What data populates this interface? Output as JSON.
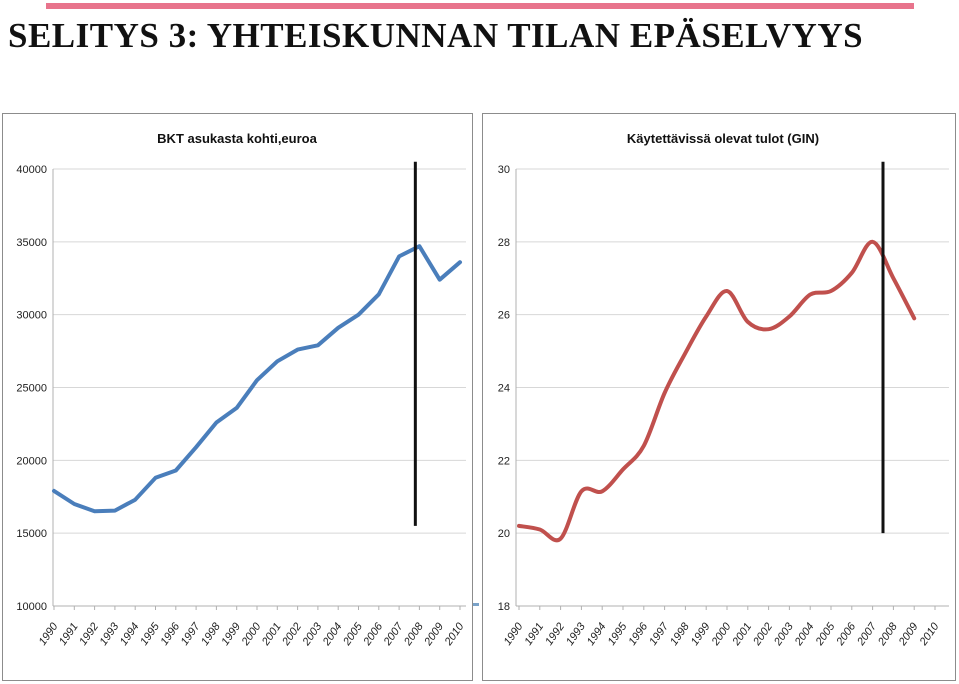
{
  "slide": {
    "title": "SELITYS 3: YHTEISKUNNAN TILAN EPÄSELVYYS",
    "accent_color": "#e8748c"
  },
  "chart_data": [
    {
      "type": "line",
      "title": "BKT asukasta kohti,euroa",
      "color": "#4a7ebb",
      "xlabel": "",
      "ylabel": "",
      "x_categories": [
        "1990",
        "1991",
        "1992",
        "1993",
        "1994",
        "1995",
        "1996",
        "1997",
        "1998",
        "1999",
        "2000",
        "2001",
        "2002",
        "2003",
        "2004",
        "2005",
        "2006",
        "2007",
        "2008",
        "2009",
        "2010"
      ],
      "ylim": [
        10000,
        40000
      ],
      "yticks": [
        10000,
        15000,
        20000,
        25000,
        30000,
        35000,
        40000
      ],
      "grid": true,
      "points": [
        {
          "x": 0.0,
          "y": 17900
        },
        {
          "x": 1.0,
          "y": 17000
        },
        {
          "x": 2.0,
          "y": 16500
        },
        {
          "x": 3.0,
          "y": 16550
        },
        {
          "x": 4.0,
          "y": 17300
        },
        {
          "x": 5.0,
          "y": 18800
        },
        {
          "x": 6.0,
          "y": 19300
        },
        {
          "x": 7.0,
          "y": 20900
        },
        {
          "x": 8.0,
          "y": 22600
        },
        {
          "x": 9.0,
          "y": 23600
        },
        {
          "x": 10.0,
          "y": 25500
        },
        {
          "x": 11.0,
          "y": 26800
        },
        {
          "x": 12.0,
          "y": 27600
        },
        {
          "x": 13.0,
          "y": 27900
        },
        {
          "x": 14.0,
          "y": 29100
        },
        {
          "x": 15.0,
          "y": 30000
        },
        {
          "x": 16.0,
          "y": 31400
        },
        {
          "x": 17.0,
          "y": 34000
        },
        {
          "x": 18.0,
          "y": 34700
        },
        {
          "x": 19.0,
          "y": 32400
        },
        {
          "x": 20.0,
          "y": 33600
        }
      ],
      "marker": {
        "x": 17.8,
        "y_from": 15500,
        "y_to": 40500
      }
    },
    {
      "type": "line",
      "title": "Käytettävissä olevat tulot (GIN)",
      "color": "#c0504d",
      "xlabel": "",
      "ylabel": "",
      "x_categories": [
        "1990",
        "1991",
        "1992",
        "1993",
        "1994",
        "1995",
        "1996",
        "1997",
        "1998",
        "1999",
        "2000",
        "2001",
        "2002",
        "2003",
        "2004",
        "2005",
        "2006",
        "2007",
        "2008",
        "2009",
        "2010"
      ],
      "ylim": [
        18,
        30
      ],
      "yticks": [
        18,
        20,
        22,
        24,
        26,
        28,
        30
      ],
      "grid": true,
      "points": [
        {
          "x": 0.0,
          "y": 20.2
        },
        {
          "x": 1.0,
          "y": 20.1
        },
        {
          "x": 2.0,
          "y": 19.85
        },
        {
          "x": 3.0,
          "y": 21.15
        },
        {
          "x": 4.0,
          "y": 21.15
        },
        {
          "x": 5.0,
          "y": 21.75
        },
        {
          "x": 6.0,
          "y": 22.4
        },
        {
          "x": 7.0,
          "y": 23.85
        },
        {
          "x": 8.0,
          "y": 24.95
        },
        {
          "x": 9.0,
          "y": 25.95
        },
        {
          "x": 10.0,
          "y": 26.65
        },
        {
          "x": 11.0,
          "y": 25.8
        },
        {
          "x": 12.0,
          "y": 25.6
        },
        {
          "x": 13.0,
          "y": 25.95
        },
        {
          "x": 14.0,
          "y": 26.55
        },
        {
          "x": 15.0,
          "y": 26.65
        },
        {
          "x": 16.0,
          "y": 27.15
        },
        {
          "x": 17.0,
          "y": 28.0
        },
        {
          "x": 18.0,
          "y": 27.0
        },
        {
          "x": 19.0,
          "y": 25.9
        }
      ],
      "marker": {
        "x": 17.5,
        "y_from": 20.0,
        "y_to": 30.2
      }
    }
  ]
}
